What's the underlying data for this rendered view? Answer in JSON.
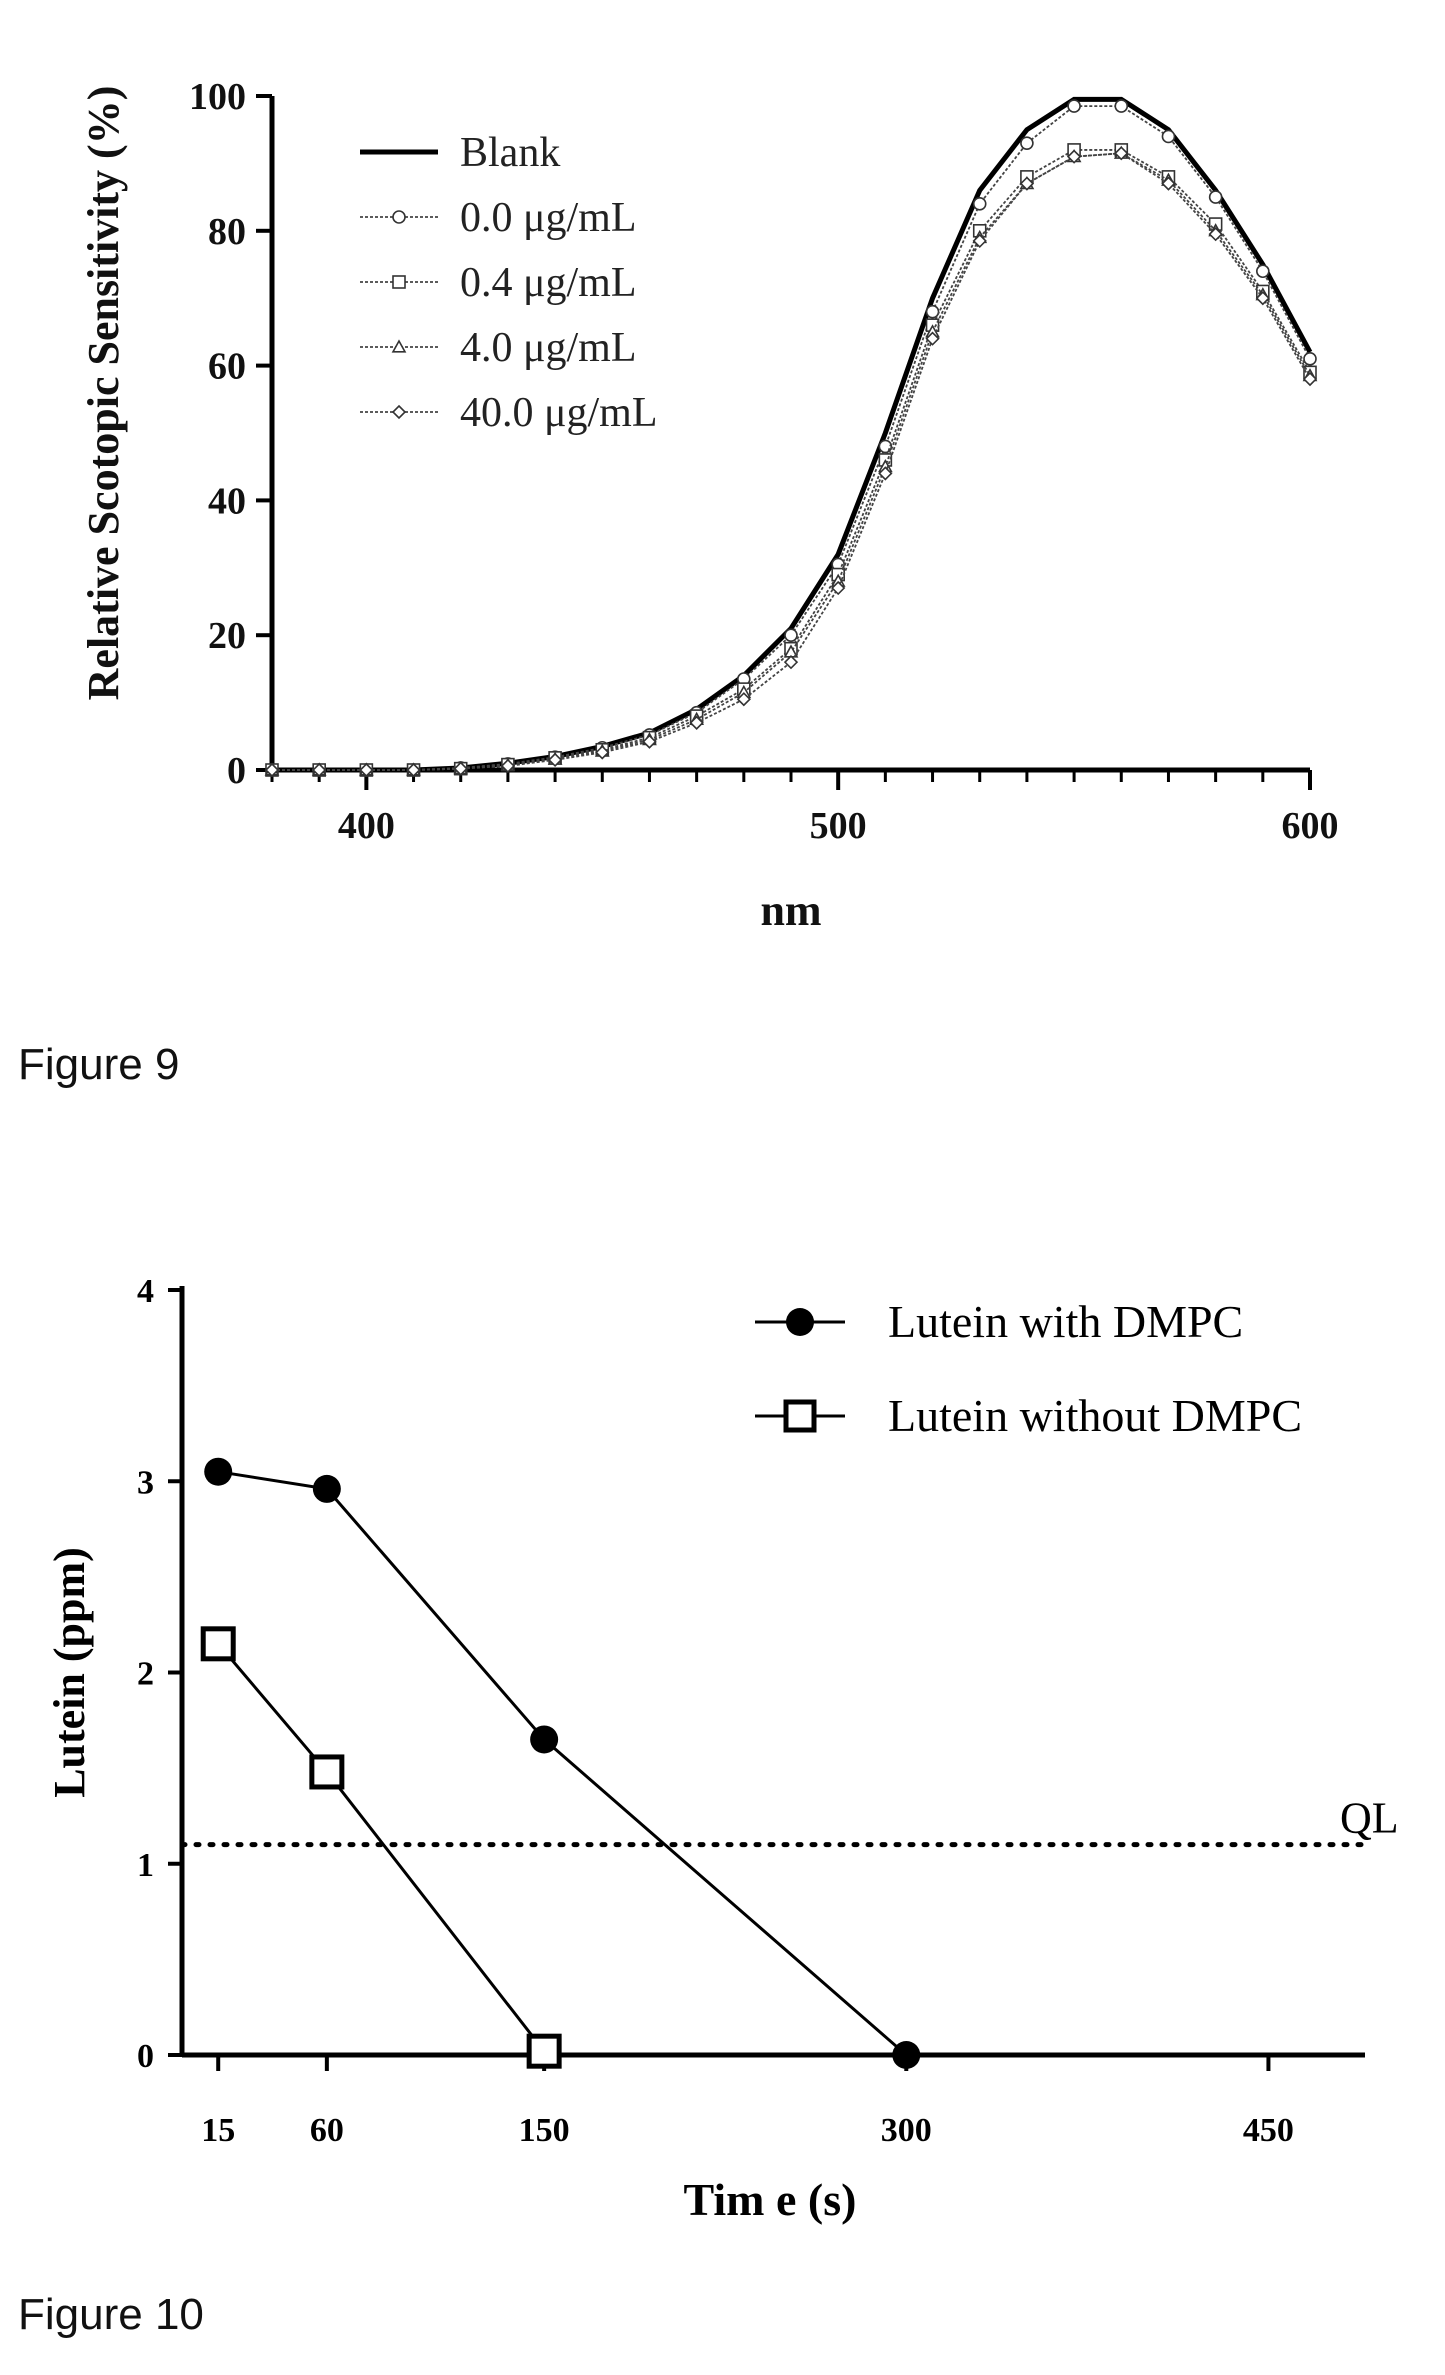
{
  "chart_data": [
    {
      "type": "line",
      "xlabel": "nm",
      "ylabel": "Relative Scotopic Sensitivity (%)",
      "xlim": [
        380,
        600
      ],
      "ylim": [
        0,
        100
      ],
      "x_ticks": [
        "400",
        "500",
        "600"
      ],
      "y_ticks": [
        "0",
        "20",
        "40",
        "60",
        "80",
        "100"
      ],
      "legend_position": "top-left",
      "x": [
        380,
        390,
        400,
        410,
        420,
        430,
        440,
        450,
        460,
        470,
        480,
        490,
        500,
        510,
        520,
        530,
        540,
        550,
        560,
        570,
        580,
        590,
        600
      ],
      "series": [
        {
          "name": "Blank",
          "marker": "none",
          "values": [
            0,
            0,
            0,
            0,
            0.3,
            1,
            2,
            3.5,
            5.5,
            9,
            14,
            21,
            32,
            50,
            70,
            86,
            95,
            99.5,
            99.5,
            95,
            86,
            75,
            62
          ]
        },
        {
          "name": "0.0 μg/mL",
          "marker": "circle",
          "values": [
            0,
            0,
            0,
            0,
            0.3,
            0.9,
            1.9,
            3.3,
            5.2,
            8.5,
            13.5,
            20,
            30.5,
            48,
            68,
            84,
            93,
            98.5,
            98.5,
            94,
            85,
            74,
            61
          ]
        },
        {
          "name": "0.4 μg/mL",
          "marker": "square",
          "values": [
            0,
            0,
            0,
            0,
            0.2,
            0.8,
            1.8,
            3,
            4.8,
            8,
            12,
            18,
            29,
            46,
            66,
            80,
            88,
            92,
            92,
            88,
            81,
            71,
            59
          ]
        },
        {
          "name": "4.0 μg/mL",
          "marker": "triangle",
          "values": [
            0,
            0,
            0,
            0,
            0.2,
            0.7,
            1.6,
            2.8,
            4.5,
            7.5,
            11.5,
            17.5,
            28,
            45,
            65,
            79,
            87,
            91,
            91.5,
            87.5,
            80,
            70.5,
            58.5
          ]
        },
        {
          "name": "40.0 μg/mL",
          "marker": "diamond",
          "values": [
            0,
            0,
            0,
            0,
            0.2,
            0.6,
            1.5,
            2.6,
            4.2,
            7,
            10.5,
            16,
            27,
            44,
            64,
            78.5,
            87,
            91,
            91.5,
            87,
            79.5,
            70,
            58
          ]
        }
      ]
    },
    {
      "type": "line",
      "xlabel": "Tim e (s)",
      "ylabel": "Lutein (ppm)",
      "xlim": [
        0,
        490
      ],
      "ylim": [
        0,
        4
      ],
      "x_ticks": [
        15,
        60,
        150,
        300,
        450
      ],
      "y_ticks": [
        0,
        1,
        2,
        3,
        4
      ],
      "legend_position": "top-right",
      "series": [
        {
          "name": "Lutein with DMPC",
          "marker": "filled-circle",
          "x": [
            15,
            60,
            150,
            300
          ],
          "values": [
            3.05,
            2.96,
            1.65,
            0
          ]
        },
        {
          "name": "Lutein without DMPC",
          "marker": "open-square",
          "x": [
            15,
            60,
            150
          ],
          "values": [
            2.15,
            1.48,
            0.02
          ]
        }
      ],
      "reference_line": {
        "label": "QL",
        "value": 1.1,
        "style": "dotted"
      }
    }
  ],
  "captions": {
    "figure9": "Figure 9",
    "figure10": "Figure 10"
  }
}
